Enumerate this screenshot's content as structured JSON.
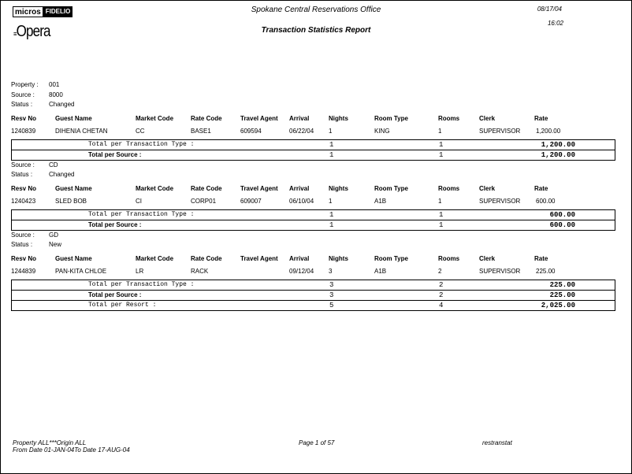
{
  "header": {
    "logo_micros": "micros",
    "logo_fidelio": "FIDELIO",
    "logo_opera": "Opera",
    "office": "Spokane Central Reservations Office",
    "report_title": "Transaction Statistics Report",
    "date": "08/17/04",
    "time": "16:02"
  },
  "labels": {
    "property": "Property :",
    "source": "Source   :",
    "status": "Status   :",
    "total_transaction": "Total per Transaction Type :",
    "total_source": "Total per Source :",
    "total_resort": "Total per Resort :"
  },
  "columns": [
    "Resv No",
    "Guest Name",
    "Market Code",
    "Rate Code",
    "Travel Agent",
    "Arrival",
    "Nights",
    "Room Type",
    "Rooms",
    "Clerk",
    "Rate"
  ],
  "property": "001",
  "sections": [
    {
      "source": "8000",
      "status": "Changed",
      "row": [
        "1240839",
        "DIHENIA CHETAN",
        "CC",
        "BASE1",
        "609594",
        "06/22/04",
        "1",
        "KING",
        "1",
        "SUPERVISOR",
        "1,200.00"
      ],
      "total_transaction": {
        "nights": "1",
        "rooms": "1",
        "rate": "1,200.00"
      },
      "total_source": {
        "nights": "1",
        "rooms": "1",
        "rate": "1,200.00"
      }
    },
    {
      "source": "CD",
      "status": "Changed",
      "row": [
        "1240423",
        "SLED BOB",
        "CI",
        "CORP01",
        "609007",
        "06/10/04",
        "1",
        "A1B",
        "1",
        "SUPERVISOR",
        "600.00"
      ],
      "total_transaction": {
        "nights": "1",
        "rooms": "1",
        "rate": "600.00"
      },
      "total_source": {
        "nights": "1",
        "rooms": "1",
        "rate": "600.00"
      }
    },
    {
      "source": "GD",
      "status": "New",
      "row": [
        "1244839",
        "PAN-KITA CHLOE",
        "LR",
        "RACK",
        "",
        "09/12/04",
        "3",
        "A1B",
        "2",
        "SUPERVISOR",
        "225.00"
      ],
      "total_transaction": {
        "nights": "3",
        "rooms": "2",
        "rate": "225.00"
      },
      "total_source": {
        "nights": "3",
        "rooms": "2",
        "rate": "225.00"
      },
      "total_resort": {
        "nights": "5",
        "rooms": "4",
        "rate": "2,025.00"
      }
    }
  ],
  "footer": {
    "line1": "Property   ALL***Origin     ALL",
    "line2": "From Date    01-JAN-04To Date     17-AUG-04",
    "page": "Page 1 of 57",
    "report_id": "restranstat"
  }
}
